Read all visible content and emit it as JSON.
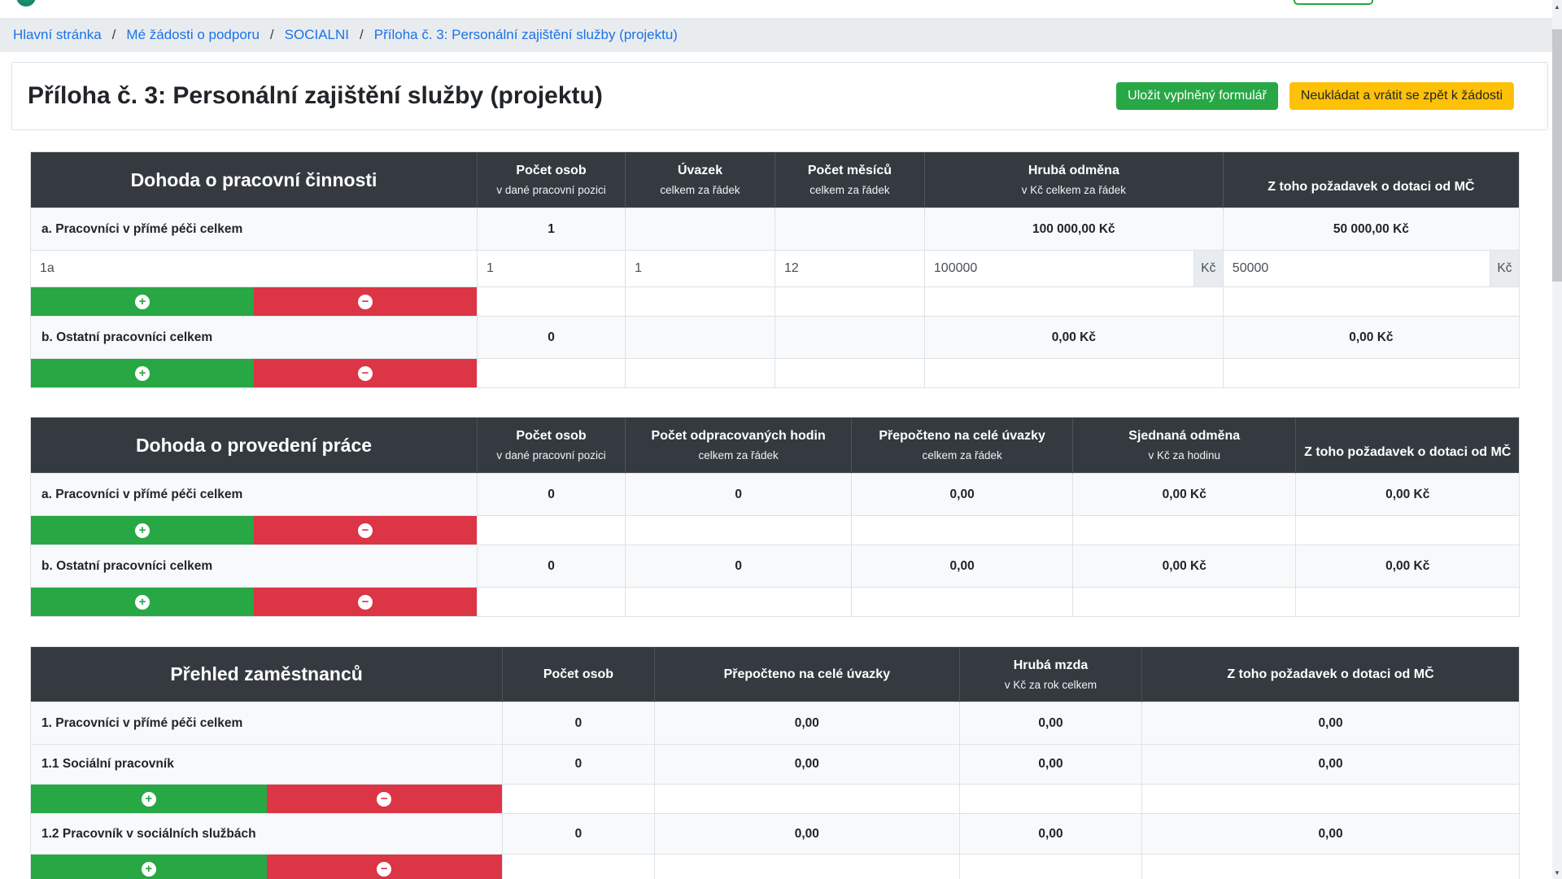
{
  "breadcrumb": {
    "separator": "/",
    "items": [
      "Hlavní stránka",
      "Mé žádosti o podporu",
      "SOCIALNI",
      "Příloha č. 3: Personální zajištění služby (projektu)"
    ]
  },
  "header": {
    "title": "Příloha č. 3: Personální zajištění služby (projektu)",
    "save_button": "Uložit vyplněný formulář",
    "cancel_button": "Neukládat a vrátit se zpět k žádosti"
  },
  "icons": {
    "add": "+",
    "remove": "−",
    "scroll_up": "▲",
    "scroll_down": "▼"
  },
  "colors": {
    "accent_green": "#28a745",
    "accent_red": "#dc3545",
    "accent_yellow": "#ffc107",
    "table_header_dark": "#343a40",
    "link_blue": "#1a73e8",
    "row_light": "#f8f9fa",
    "border": "#dee2e6"
  },
  "currency_suffix": "Kč",
  "table1": {
    "title": "Dohoda o pracovní činnosti",
    "columns": [
      {
        "main": "Počet osob",
        "sub": "v dané pracovní pozici"
      },
      {
        "main": "Úvazek",
        "sub": "celkem za řádek"
      },
      {
        "main": "Počet měsíců",
        "sub": "celkem za řádek"
      },
      {
        "main": "Hrubá odměna",
        "sub": "v Kč celkem za řádek"
      },
      {
        "main": "Z toho požadavek o dotaci od MČ",
        "sub": ""
      }
    ],
    "row_a": {
      "label": "a. Pracovníci v přímé péči celkem",
      "pocet": "1",
      "uvazek": "",
      "mesice": "",
      "hruba": "100 000,00 Kč",
      "dotace": "50 000,00 Kč"
    },
    "input_row": {
      "nazev": "1a",
      "pocet": "1",
      "uvazek": "1",
      "mesice": "12",
      "hruba": "100000",
      "dotace": "50000"
    },
    "row_b": {
      "label": "b. Ostatní pracovníci celkem",
      "pocet": "0",
      "uvazek": "",
      "mesice": "",
      "hruba": "0,00 Kč",
      "dotace": "0,00 Kč"
    }
  },
  "table2": {
    "title": "Dohoda o provedení práce",
    "columns": [
      {
        "main": "Počet osob",
        "sub": "v dané pracovní pozici"
      },
      {
        "main": "Počet odpracovaných hodin",
        "sub": "celkem za řádek"
      },
      {
        "main": "Přepočteno na celé úvazky",
        "sub": "celkem za řádek"
      },
      {
        "main": "Sjednaná odměna",
        "sub": "v Kč za hodinu"
      },
      {
        "main": "Z toho požadavek o dotaci od MČ",
        "sub": ""
      }
    ],
    "row_a": {
      "label": "a. Pracovníci v přímé péči celkem",
      "values": [
        "0",
        "0",
        "0,00",
        "0,00 Kč",
        "0,00 Kč"
      ]
    },
    "row_b": {
      "label": "b. Ostatní pracovníci celkem",
      "values": [
        "0",
        "0",
        "0,00",
        "0,00 Kč",
        "0,00 Kč"
      ]
    }
  },
  "table3": {
    "title": "Přehled zaměstnanců",
    "columns": [
      {
        "main": "Počet osob",
        "sub": ""
      },
      {
        "main": "Přepočteno na celé úvazky",
        "sub": ""
      },
      {
        "main": "Hrubá mzda",
        "sub": "v Kč za rok celkem"
      },
      {
        "main": "Z toho požadavek o dotaci od MČ",
        "sub": ""
      }
    ],
    "rows": [
      {
        "label": "1. Pracovníci v přímé péči celkem",
        "values": [
          "0",
          "0,00",
          "0,00",
          "0,00"
        ]
      },
      {
        "label": "1.1 Sociální pracovník",
        "values": [
          "0",
          "0,00",
          "0,00",
          "0,00"
        ]
      },
      {
        "label": "1.2 Pracovník v sociálních službách",
        "values": [
          "0",
          "0,00",
          "0,00",
          "0,00"
        ]
      }
    ]
  }
}
